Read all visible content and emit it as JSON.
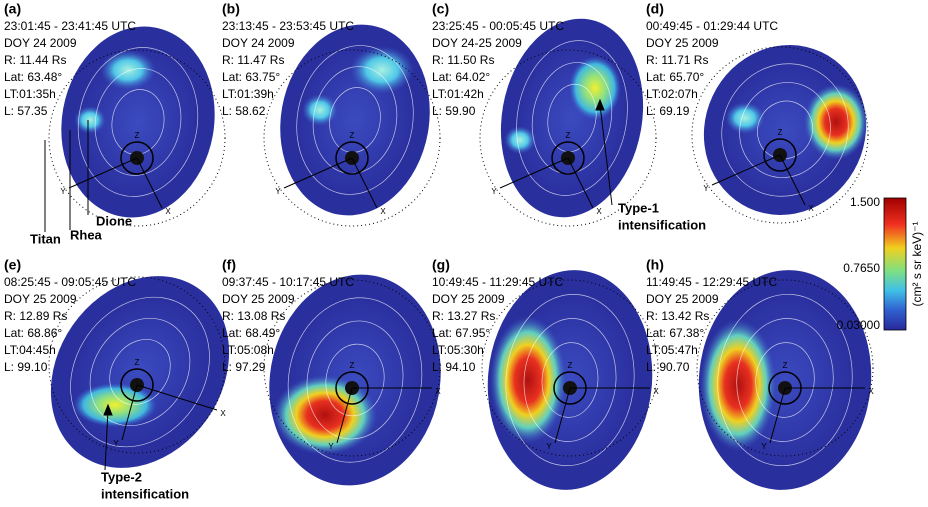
{
  "panels": [
    {
      "label": "(a)",
      "time": "23:01:45 - 23:41:45 UTC",
      "doy": "DOY 24 2009",
      "r": "R: 11.44 Rs",
      "lat": "Lat: 63.48°",
      "lt": "LT:01:35h",
      "l": "L: 57.35"
    },
    {
      "label": "(b)",
      "time": "23:13:45 - 23:53:45 UTC",
      "doy": "DOY 24 2009",
      "r": "R: 11.47 Rs",
      "lat": "Lat: 63.75°",
      "lt": "LT:01:39h",
      "l": "L: 58.62"
    },
    {
      "label": "(c)",
      "time": "23:25:45 - 00:05:45 UTC",
      "doy": "DOY 24-25 2009",
      "r": "R: 11.50 Rs",
      "lat": "Lat: 64.02°",
      "lt": "LT:01:42h",
      "l": "L: 59.90"
    },
    {
      "label": "(d)",
      "time": "00:49:45 - 01:29:44 UTC",
      "doy": "DOY 25 2009",
      "r": "R: 11.71 Rs",
      "lat": "Lat: 65.70°",
      "lt": "LT:02:07h",
      "l": "L: 69.19"
    },
    {
      "label": "(e)",
      "time": "08:25:45 - 09:05:45 UTC",
      "doy": "DOY 25 2009",
      "r": "R: 12.89 Rs",
      "lat": "Lat: 68.86°",
      "lt": "LT:04:45h",
      "l": "L: 99.10"
    },
    {
      "label": "(f)",
      "time": "09:37:45 - 10:17:45 UTC",
      "doy": "DOY 25 2009",
      "r": "R: 13.08 Rs",
      "lat": "Lat: 68.49°",
      "lt": "LT:05:08h",
      "l": "L: 97.29"
    },
    {
      "label": "(g)",
      "time": "10:49:45 - 11:29:45 UTC",
      "doy": "DOY 25 2009",
      "r": "R: 13.27 Rs",
      "lat": "Lat: 67.95°",
      "lt": "LT:05:30h",
      "l": "L: 94.10"
    },
    {
      "label": "(h)",
      "time": "11:49:45 - 12:29:45 UTC",
      "doy": "DOY 25 2009",
      "r": "R: 13.42 Rs",
      "lat": "Lat: 67.38°",
      "lt": "LT:05:47h",
      "l": "L: 90.70"
    }
  ],
  "axis_labels": {
    "x": "X",
    "y": "Y",
    "z": "Z"
  },
  "annotations": {
    "titan": "Titan",
    "rhea": "Rhea",
    "dione": "Dione",
    "type1": "Type-1",
    "type2": "Type-2",
    "intensification": "intensification"
  },
  "colorbar": {
    "ticks": [
      "1.500",
      "0.7650",
      "0.03000"
    ],
    "unit": "(cm² s sr keV)⁻¹"
  }
}
